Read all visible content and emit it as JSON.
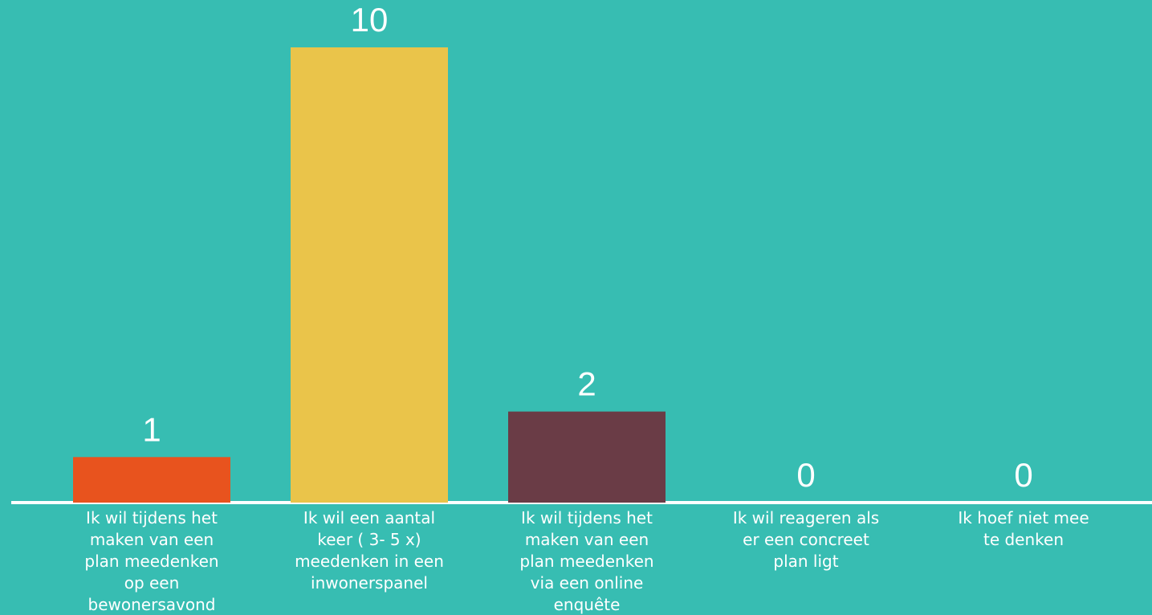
{
  "colors": {
    "background": "#37bdb2",
    "axis": "#ffffff",
    "text": "#ffffff"
  },
  "chart_data": {
    "type": "bar",
    "title": "",
    "xlabel": "",
    "ylabel": "",
    "ylim": [
      0,
      10
    ],
    "grid": false,
    "legend": "none",
    "categories": [
      [
        "Ik wil tijdens het",
        "maken van een",
        "plan meedenken",
        "op een",
        "bewonersavond"
      ],
      [
        "Ik wil een aantal",
        "keer ( 3- 5 x)",
        "meedenken in een",
        "inwonerspanel"
      ],
      [
        "Ik wil tijdens het",
        "maken van een",
        "plan meedenken",
        "via een online",
        "enquête"
      ],
      [
        "Ik wil reageren als",
        "er een concreet",
        "plan ligt"
      ],
      [
        "Ik hoef niet mee",
        "te denken"
      ]
    ],
    "values": [
      1,
      10,
      2,
      0,
      0
    ],
    "data_labels": [
      "1",
      "10",
      "2",
      "0",
      "0"
    ],
    "bar_colors": [
      "#e8531e",
      "#eac44a",
      "#6a3c46",
      "#37bdb2",
      "#37bdb2"
    ]
  }
}
